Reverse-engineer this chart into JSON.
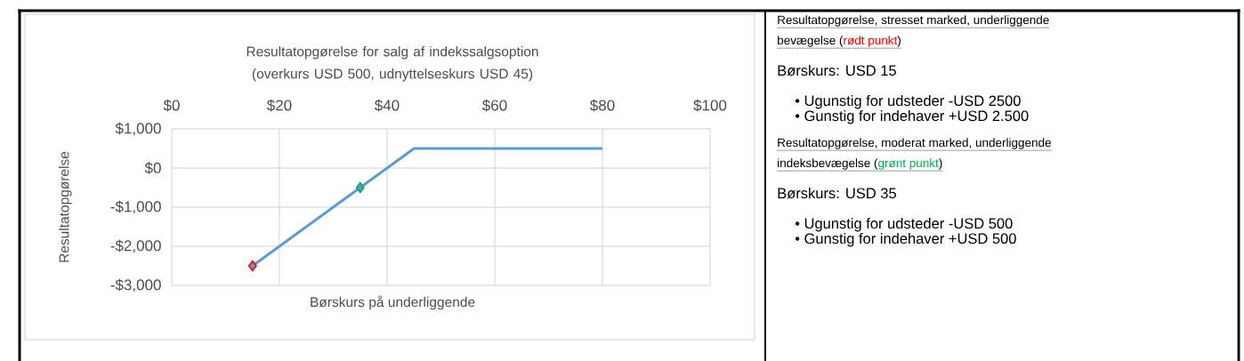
{
  "chart_data": [
    {
      "type": "line",
      "title": "Resultatopgørelse for salg af indekssalgsoption (overkurs USD 500, udnyttelseskurs USD 45)",
      "xlabel": "Børskurs på underliggende",
      "ylabel": "Resultatopgørelse",
      "series": [
        {
          "type": "line",
          "color": "#5b9bd5",
          "marker": "none",
          "x": [
            15,
            45,
            80
          ],
          "values": [
            -2500,
            500,
            500
          ]
        },
        {
          "type": "scatter",
          "color": "#ff0000",
          "marker": "diamond",
          "x": [
            15
          ],
          "values": [
            -2500
          ]
        },
        {
          "type": "scatter",
          "color": "#00b050",
          "marker": "diamond",
          "x": [
            35
          ],
          "values": [
            -500
          ]
        }
      ],
      "xlim": [
        0,
        100
      ],
      "xticks": [
        {
          "value": 0,
          "label": "$0"
        },
        {
          "value": 20,
          "label": "$20"
        },
        {
          "value": 40,
          "label": "$40"
        },
        {
          "value": 60,
          "label": "$60"
        },
        {
          "value": 80,
          "label": "$80"
        },
        {
          "value": 100,
          "label": "$100"
        }
      ],
      "ylim": [
        -3000,
        1000
      ],
      "yticks": [
        {
          "value": -3000,
          "label": "-$3,000"
        },
        {
          "value": -2000,
          "label": "-$2,000"
        },
        {
          "value": -1000,
          "label": "-$1,000"
        },
        {
          "value": 0,
          "label": "$0"
        },
        {
          "value": 1000,
          "label": "$1,000"
        }
      ],
      "grid": true
    },
    {
      "type": "other",
      "annotations": [
        "Resultatopgørelse, stresset marked, underliggende",
        "bevægelse (",
        "rødt punkt",
        ")",
        "Børskurs: USD 15",
        "• Ugunstig for udsteder  -USD 2500",
        "• Gunstig for indehaver      +USD 2.500",
        "Resultatopgørelse, moderat marked, underliggende",
        "indeksbevægelse (",
        "grønt punkt",
        ")",
        "Børskurs: USD 35",
        "• Ugunstig for udsteder  -USD 500",
        "• Gunstig for indehaver      +USD 500"
      ]
    }
  ]
}
